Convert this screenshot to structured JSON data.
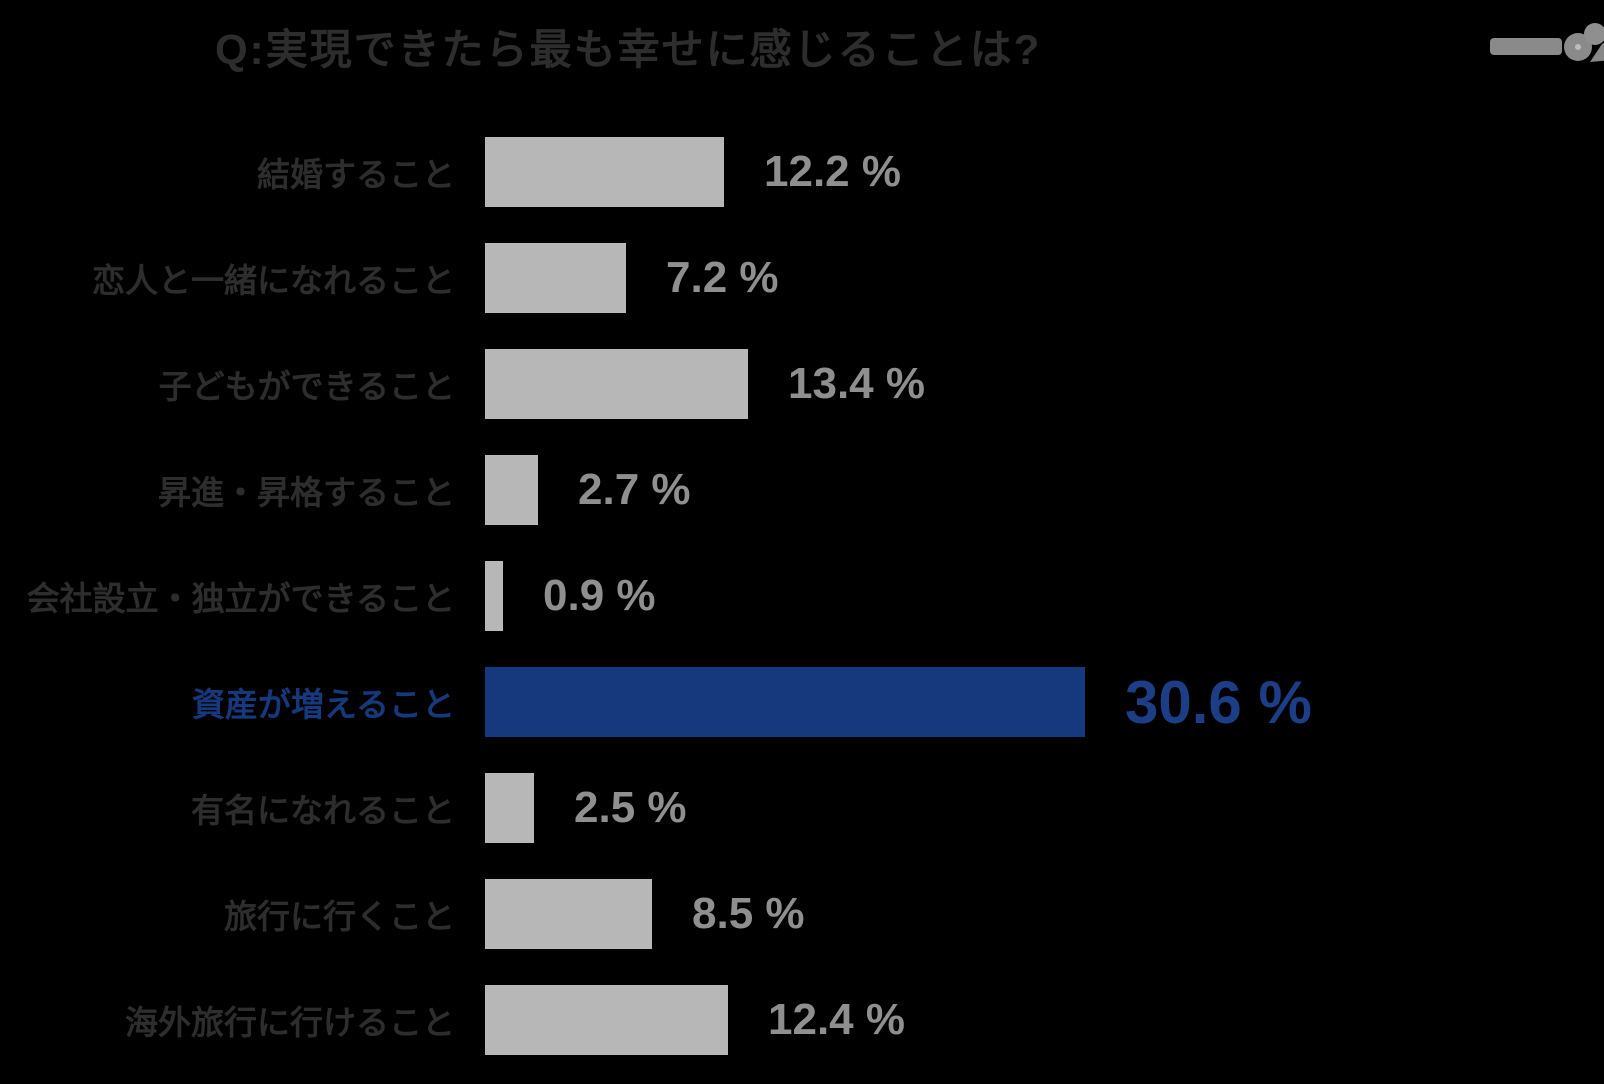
{
  "page": {
    "background": "#000000"
  },
  "header": {
    "title": "Q:実現できたら最も幸せに感じることは?",
    "title_color": "#2d2d2d"
  },
  "brand": {
    "mark": "gray-logo-mark",
    "color": "#8a8a8a"
  },
  "chart_data": {
    "type": "bar",
    "orientation": "horizontal",
    "title": "Q:実現できたら最も幸せに感じることは?",
    "unit": "%",
    "categories": [
      "結婚すること",
      "恋人と一緒になれること",
      "子どもができること",
      "昇進・昇格すること",
      "会社設立・独立ができること",
      "資産が増えること",
      "有名になれること",
      "旅行に行くこと",
      "海外旅行に行けること"
    ],
    "values": [
      12.2,
      7.2,
      13.4,
      2.7,
      0.9,
      30.6,
      2.5,
      8.5,
      12.4
    ],
    "value_labels": [
      "12.2 %",
      "7.2 %",
      "13.4 %",
      "2.7 %",
      "0.9 %",
      "30.6 %",
      "2.5 %",
      "8.5 %",
      "12.4 %"
    ],
    "highlight_index": 5,
    "highlight_category": "資産が増えること",
    "highlight_value_label": "30.6 %",
    "xlim": [
      0,
      32
    ],
    "grid": false,
    "legend": false,
    "axes_hidden": true,
    "colors": {
      "bar": "#b7b7b7",
      "bar_highlight": "#16387d",
      "value_text": "#8f8f8f",
      "value_text_highlight": "#1b3e86",
      "label_text": "#2d2d2d",
      "label_text_highlight": "#16387d",
      "title_text": "#2d2d2d",
      "background": "#000000"
    }
  }
}
